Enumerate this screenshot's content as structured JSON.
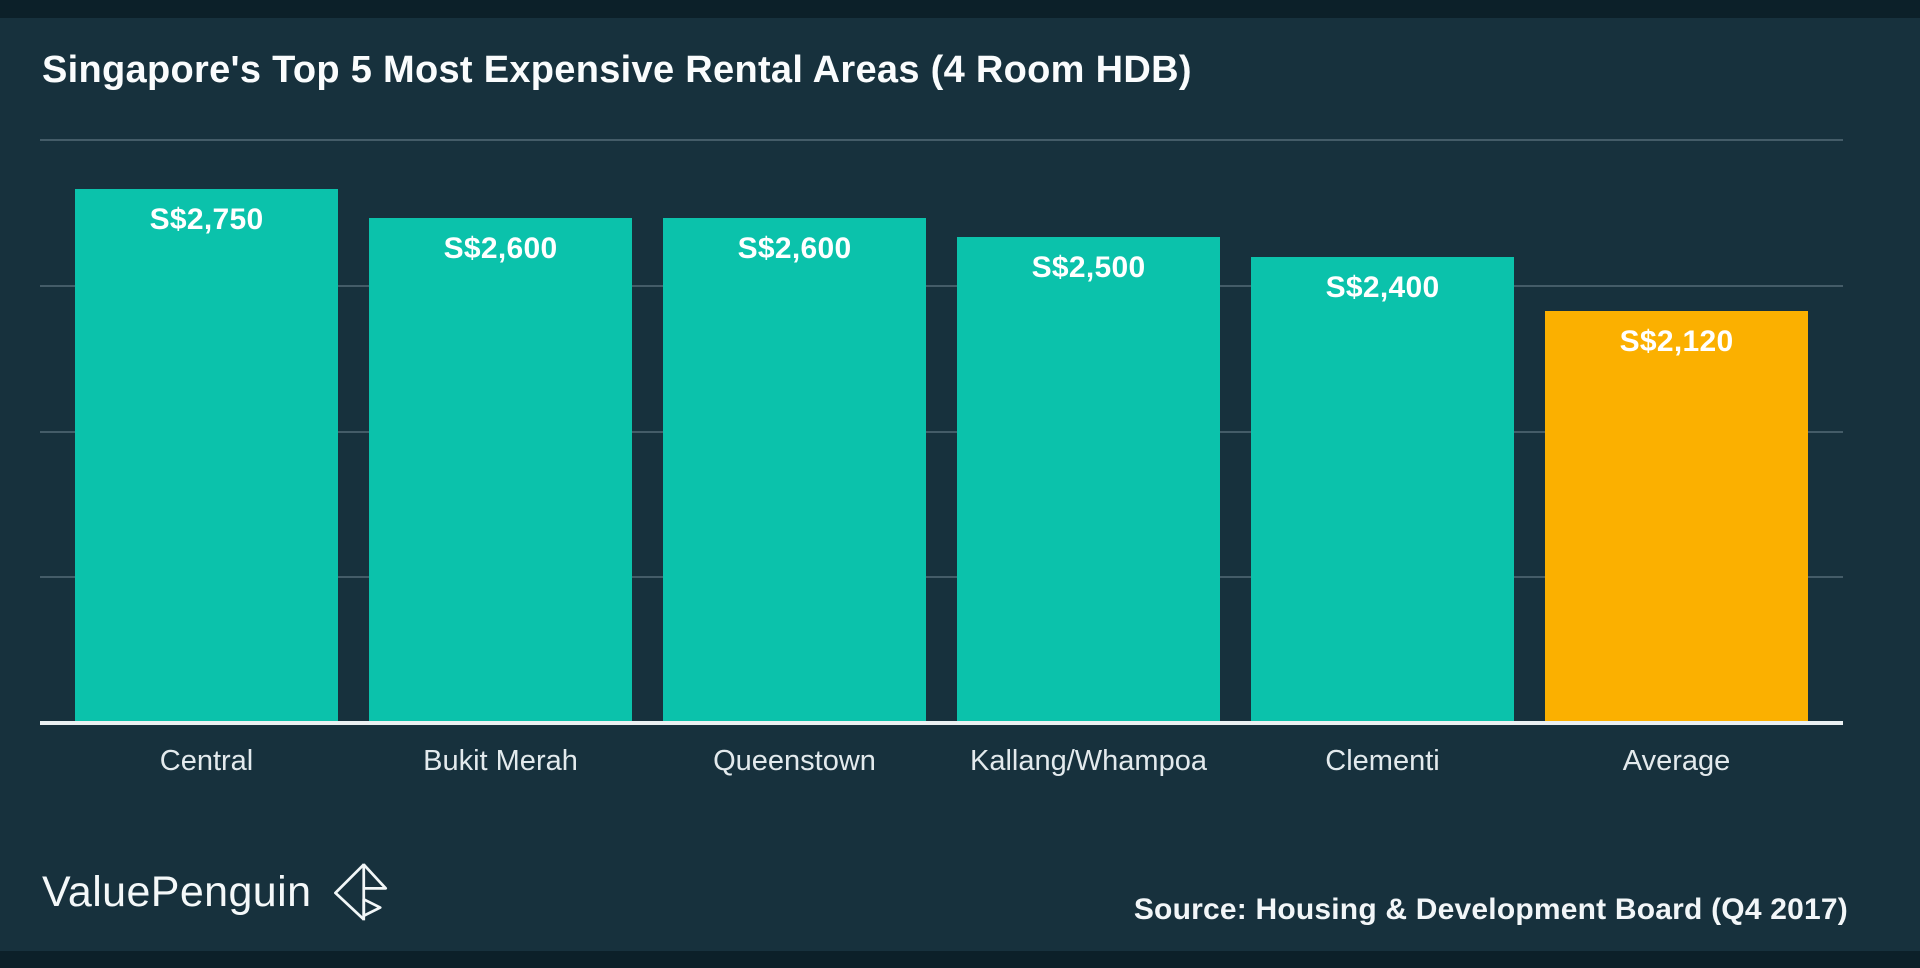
{
  "page": {
    "title": "Singapore's Top 5 Most Expensive Rental Areas (4 Room HDB)"
  },
  "chart_data": {
    "type": "bar",
    "title": "Singapore's Top 5 Most Expensive Rental Areas (4 Room HDB)",
    "categories": [
      "Central",
      "Bukit Merah",
      "Queenstown",
      "Kallang/Whampoa",
      "Clementi",
      "Average"
    ],
    "values": [
      2750,
      2600,
      2600,
      2500,
      2400,
      2120
    ],
    "value_labels": [
      "S$2,750",
      "S$2,600",
      "S$2,600",
      "S$2,500",
      "S$2,400",
      "S$2,120"
    ],
    "bar_colors": [
      "#0BC2AB",
      "#0BC2AB",
      "#0BC2AB",
      "#0BC2AB",
      "#0BC2AB",
      "#FBB000"
    ],
    "unit": "S$",
    "xlabel": "",
    "ylabel": "",
    "ylim": [
      0,
      3000
    ],
    "gridline_values": [
      750,
      1500,
      2250,
      3000
    ],
    "grid": true,
    "legend": "none",
    "value_label_position": "inside-top"
  },
  "footer": {
    "brand": "ValuePenguin",
    "source": "Source: Housing & Development Board (Q4 2017)"
  },
  "colors": {
    "background": "#17313D",
    "edge_strip": "#0C2029",
    "bar_teal": "#0BC2AB",
    "bar_highlight_orange": "#FBB000",
    "gridline": "rgba(165,185,195,0.32)",
    "baseline": "#EAF0F2",
    "title_text": "#FAFCFD",
    "value_label_text": "#FFFFFF",
    "category_text": "#E3EAED"
  }
}
